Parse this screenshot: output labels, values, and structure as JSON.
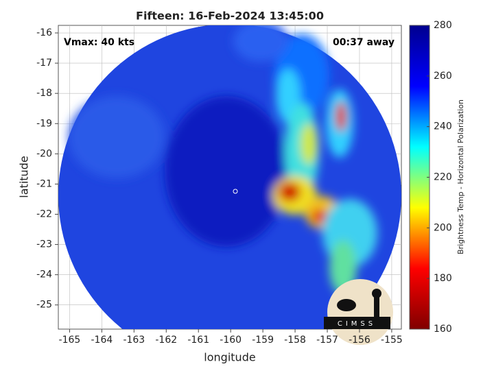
{
  "chart_data": {
    "type": "image",
    "title": "Fifteen: 16-Feb-2024 13:45:00",
    "x_label": "longitude",
    "y_label": "latitude",
    "annotations": [
      "Vmax: 40 kts",
      "00:37 away"
    ],
    "logo_text": "CIMSS",
    "xlim": [
      -165.35,
      -154.7
    ],
    "ylim": [
      -25.8,
      -15.75
    ],
    "xticks": [
      -165,
      -164,
      -163,
      -162,
      -161,
      -160,
      -159,
      -158,
      -157,
      -156,
      -155
    ],
    "yticks": [
      -16,
      -17,
      -18,
      -19,
      -20,
      -21,
      -22,
      -23,
      -24,
      -25
    ],
    "grid": true,
    "colorbar": {
      "label": "Brightness Temp - Horizontal Polarization",
      "lim": [
        160,
        280
      ],
      "ticks": [
        160,
        180,
        200,
        220,
        240,
        260,
        280
      ],
      "colormap": [
        "#800000",
        "#ff0000",
        "#ffff00",
        "#00ffff",
        "#0000ff",
        "#00008f"
      ]
    }
  }
}
